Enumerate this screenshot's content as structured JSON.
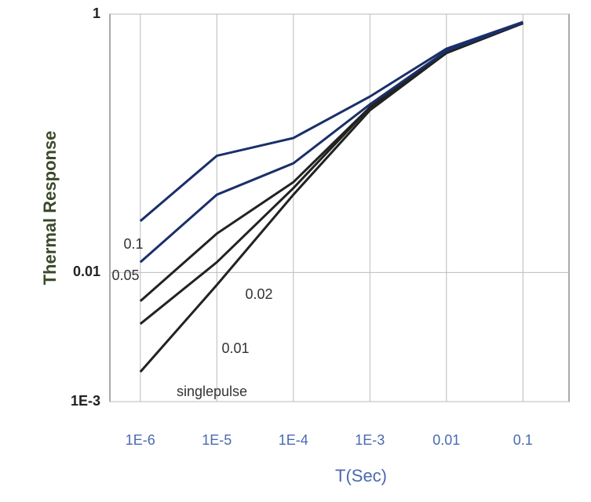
{
  "chart_data": {
    "type": "line",
    "y_label": "Thermal Response",
    "x_label": "T(Sec)",
    "log_x": true,
    "log_y": true,
    "grid": true,
    "xlim": [
      4e-07,
      0.4
    ],
    "ylim": [
      0.001,
      1
    ],
    "xticks": [
      {
        "value": 1e-06,
        "label": "1E-6"
      },
      {
        "value": 1e-05,
        "label": "1E-5"
      },
      {
        "value": 0.0001,
        "label": "1E-4"
      },
      {
        "value": 0.001,
        "label": "1E-3"
      },
      0.01,
      0.1
    ],
    "yticks": [
      {
        "value": 0.001,
        "label": "1E-3"
      },
      0.01,
      1
    ],
    "x": [
      1e-06,
      1e-05,
      0.0001,
      0.001,
      0.01,
      0.1
    ],
    "series": [
      {
        "name": "singlepulse",
        "color": "#222222",
        "values": [
          0.0017,
          0.008,
          0.04,
          0.18,
          0.5,
          0.85
        ]
      },
      {
        "name": "0.01",
        "color": "#222222",
        "values": [
          0.004,
          0.012,
          0.045,
          0.19,
          0.5,
          0.85
        ]
      },
      {
        "name": "0.02",
        "color": "#222222",
        "values": [
          0.006,
          0.02,
          0.05,
          0.19,
          0.51,
          0.85
        ]
      },
      {
        "name": "0.05",
        "color": "#1a2f6a",
        "values": [
          0.012,
          0.04,
          0.07,
          0.2,
          0.52,
          0.86
        ]
      },
      {
        "name": "0.1",
        "color": "#1a2f6a",
        "values": [
          0.025,
          0.08,
          0.11,
          0.23,
          0.54,
          0.87
        ]
      }
    ]
  }
}
